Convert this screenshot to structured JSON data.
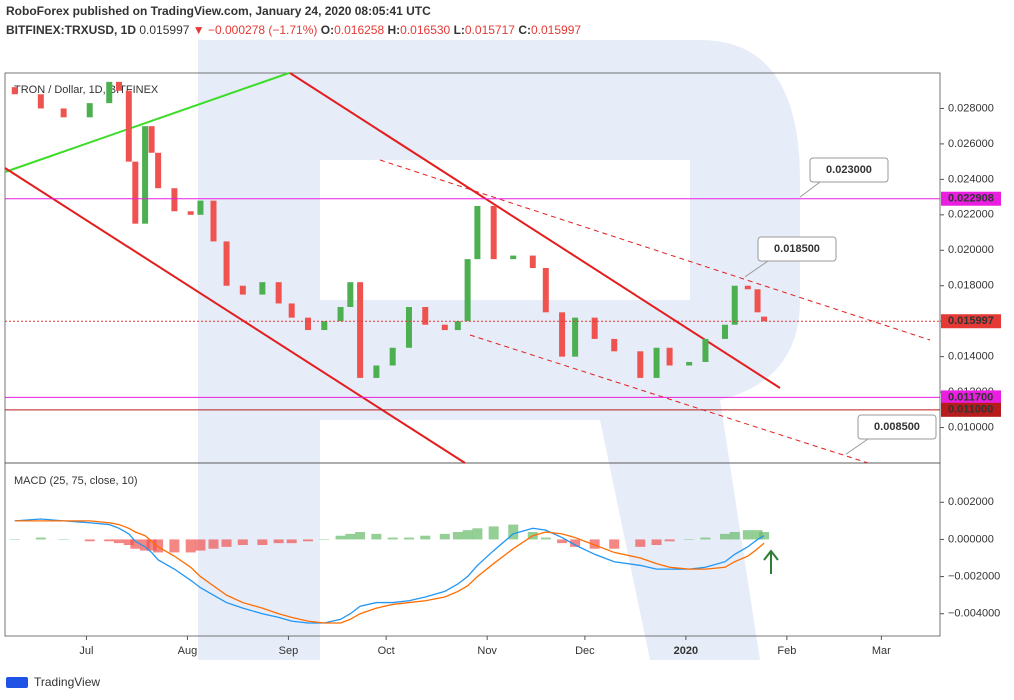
{
  "header": {
    "publisher": "RoboForex published on TradingView.com, January 24, 2020 08:05:41 UTC",
    "symbol": "BITFINEX:TRXUSD, 1D",
    "last": "0.015997",
    "change": "▼ −0.000278 (−1.71%)",
    "ohlc": [
      {
        "label": "O:",
        "value": "0.016258"
      },
      {
        "label": "H:",
        "value": "0.016530"
      },
      {
        "label": "L:",
        "value": "0.015717"
      },
      {
        "label": "C:",
        "value": "0.015997"
      }
    ]
  },
  "chart_data": [
    {
      "type": "candlestick",
      "title": "TRON / Dollar, 1D, BITFINEX",
      "x": [
        -22,
        -14,
        -7,
        1,
        7,
        10,
        13,
        15,
        18,
        20,
        22,
        27,
        32,
        35,
        39,
        43,
        48,
        54,
        59,
        63,
        68,
        73,
        78,
        81,
        84,
        89,
        94,
        99,
        104,
        110,
        114,
        117,
        120,
        125,
        131,
        137,
        141,
        146,
        150,
        156,
        162,
        170,
        175,
        179,
        185,
        190,
        196,
        199,
        203,
        206,
        208
      ],
      "open": [
        0.0292,
        0.0288,
        0.028,
        0.0275,
        0.0283,
        0.0295,
        0.029,
        0.025,
        0.0215,
        0.027,
        0.0255,
        0.0235,
        0.0222,
        0.022,
        0.0228,
        0.0205,
        0.018,
        0.0175,
        0.0182,
        0.017,
        0.0162,
        0.0155,
        0.016,
        0.0168,
        0.0182,
        0.0128,
        0.0135,
        0.0145,
        0.0168,
        0.0158,
        0.0155,
        0.016,
        0.0195,
        0.0225,
        0.0195,
        0.0197,
        0.019,
        0.0165,
        0.014,
        0.0162,
        0.015,
        0.0143,
        0.0128,
        0.0145,
        0.0135,
        0.0137,
        0.015,
        0.0158,
        0.018,
        0.0178,
        0.016258
      ],
      "close": [
        0.0288,
        0.028,
        0.0275,
        0.0283,
        0.0295,
        0.029,
        0.025,
        0.0215,
        0.027,
        0.0255,
        0.0235,
        0.0222,
        0.022,
        0.0228,
        0.0205,
        0.018,
        0.0175,
        0.0182,
        0.017,
        0.0162,
        0.0155,
        0.016,
        0.0168,
        0.0182,
        0.0128,
        0.0135,
        0.0145,
        0.0168,
        0.0158,
        0.0155,
        0.016,
        0.0195,
        0.0225,
        0.0195,
        0.0197,
        0.019,
        0.0165,
        0.014,
        0.0162,
        0.015,
        0.0143,
        0.0128,
        0.0145,
        0.0135,
        0.0137,
        0.015,
        0.0158,
        0.018,
        0.0178,
        0.0165,
        0.015997
      ],
      "up_color": "#4caf50",
      "down_color": "#ef5350",
      "xlim": [
        -25,
        262
      ],
      "xticks": [
        {
          "value": 0,
          "label": "Jul"
        },
        {
          "value": 31,
          "label": "Aug"
        },
        {
          "value": 62,
          "label": "Sep"
        },
        {
          "value": 92,
          "label": "Oct"
        },
        {
          "value": 123,
          "label": "Nov"
        },
        {
          "value": 153,
          "label": "Dec"
        },
        {
          "value": 184,
          "label": "2020"
        },
        {
          "value": 215,
          "label": "Feb"
        },
        {
          "value": 244,
          "label": "Mar"
        }
      ],
      "ylim": [
        0.008,
        0.03
      ],
      "yticks": [
        {
          "value": 0.01,
          "label": "0.010000"
        },
        {
          "value": 0.012,
          "label": "0.012000"
        },
        {
          "value": 0.014,
          "label": "0.014000"
        },
        {
          "value": 0.016,
          "label": "0.016000"
        },
        {
          "value": 0.018,
          "label": "0.018000"
        },
        {
          "value": 0.02,
          "label": "0.020000"
        },
        {
          "value": 0.022,
          "label": "0.022000"
        },
        {
          "value": 0.024,
          "label": "0.024000"
        },
        {
          "value": 0.026,
          "label": "0.026000"
        },
        {
          "value": 0.028,
          "label": "0.028000"
        }
      ],
      "levels": [
        {
          "value": 0.022908,
          "label": "0.022908",
          "color": "#e91ee0"
        },
        {
          "value": 0.015997,
          "label": "0.015997",
          "color": "#e53935"
        },
        {
          "value": 0.0117,
          "label": "0.011700",
          "color": "#e91ee0"
        },
        {
          "value": 0.011,
          "label": "0.011000",
          "color": "#b71c1c"
        }
      ],
      "callouts": [
        {
          "value": 0.023,
          "label": "0.023000",
          "color": "#43a047"
        },
        {
          "value": 0.0185,
          "label": "0.018500",
          "color": "#43a047"
        },
        {
          "value": 0.0085,
          "label": "0.008500",
          "color": "#e53935"
        }
      ]
    },
    {
      "type": "macd",
      "title": "MACD (25, 75, close, 10)",
      "x": [
        -22,
        -14,
        -7,
        1,
        7,
        10,
        13,
        15,
        18,
        20,
        22,
        27,
        32,
        35,
        39,
        43,
        48,
        54,
        59,
        63,
        68,
        73,
        78,
        81,
        84,
        89,
        94,
        99,
        104,
        110,
        114,
        117,
        120,
        125,
        131,
        137,
        141,
        146,
        150,
        156,
        162,
        170,
        175,
        179,
        185,
        190,
        196,
        199,
        203,
        206,
        208
      ],
      "xlim": [
        -25,
        262
      ],
      "series": [
        {
          "name": "MACD",
          "color": "#2196f3",
          "values": [
            0.001,
            0.0011,
            0.001,
            0.0009,
            0.0008,
            0.0006,
            0.0003,
            -0.0001,
            -0.0004,
            -0.0007,
            -0.0011,
            -0.0016,
            -0.0022,
            -0.0026,
            -0.003,
            -0.0034,
            -0.0037,
            -0.004,
            -0.0042,
            -0.0044,
            -0.0045,
            -0.0045,
            -0.0043,
            -0.004,
            -0.0036,
            -0.0034,
            -0.0034,
            -0.0033,
            -0.0031,
            -0.0028,
            -0.0024,
            -0.002,
            -0.0014,
            -0.0006,
            0.0003,
            0.0006,
            0.0005,
            0.0001,
            -0.0003,
            -0.0008,
            -0.0012,
            -0.0014,
            -0.0016,
            -0.0016,
            -0.0016,
            -0.0015,
            -0.0012,
            -0.0008,
            -0.0004,
            0.0,
            0.0002
          ]
        },
        {
          "name": "Signal",
          "color": "#ff6d00",
          "values": [
            0.001,
            0.001,
            0.001,
            0.001,
            0.0009,
            0.0008,
            0.0006,
            0.0004,
            0.0002,
            -0.0001,
            -0.0004,
            -0.0009,
            -0.0015,
            -0.002,
            -0.0025,
            -0.003,
            -0.0034,
            -0.0037,
            -0.004,
            -0.0042,
            -0.0044,
            -0.0045,
            -0.0045,
            -0.0043,
            -0.004,
            -0.0037,
            -0.0035,
            -0.0034,
            -0.0033,
            -0.0031,
            -0.0028,
            -0.0025,
            -0.002,
            -0.0013,
            -0.0005,
            0.0002,
            0.0004,
            0.0003,
            0.0001,
            -0.0003,
            -0.0007,
            -0.001,
            -0.0013,
            -0.0015,
            -0.0016,
            -0.0016,
            -0.0015,
            -0.0012,
            -0.0009,
            -0.0005,
            -0.0002
          ]
        }
      ],
      "histogram": {
        "up_color": "#66bb6a",
        "down_color": "#ef5350",
        "values": [
          0,
          0.0001,
          0,
          -0.0001,
          -0.0001,
          -0.0002,
          -0.0003,
          -0.0005,
          -0.0006,
          -0.0006,
          -0.0007,
          -0.0007,
          -0.0007,
          -0.0006,
          -0.0005,
          -0.0004,
          -0.0003,
          -0.0003,
          -0.0002,
          -0.0002,
          -0.0001,
          0,
          0.0002,
          0.0003,
          0.0004,
          0.0003,
          0.0001,
          0.0001,
          0.0002,
          0.0003,
          0.0004,
          0.0005,
          0.0006,
          0.0007,
          0.0008,
          0.0004,
          0.0001,
          -0.0002,
          -0.0004,
          -0.0005,
          -0.0005,
          -0.0004,
          -0.0003,
          -0.0001,
          0,
          0.0001,
          0.0003,
          0.0004,
          0.0005,
          0.0005,
          0.0004
        ]
      },
      "ylim": [
        -0.0052,
        0.0039
      ],
      "yticks": [
        {
          "value": 0.002,
          "label": "0.002000"
        },
        {
          "value": 0,
          "label": "0.000000"
        },
        {
          "value": -0.002,
          "label": "−0.002000"
        },
        {
          "value": -0.004,
          "label": "−0.004000"
        }
      ]
    }
  ],
  "footer": "TradingView"
}
